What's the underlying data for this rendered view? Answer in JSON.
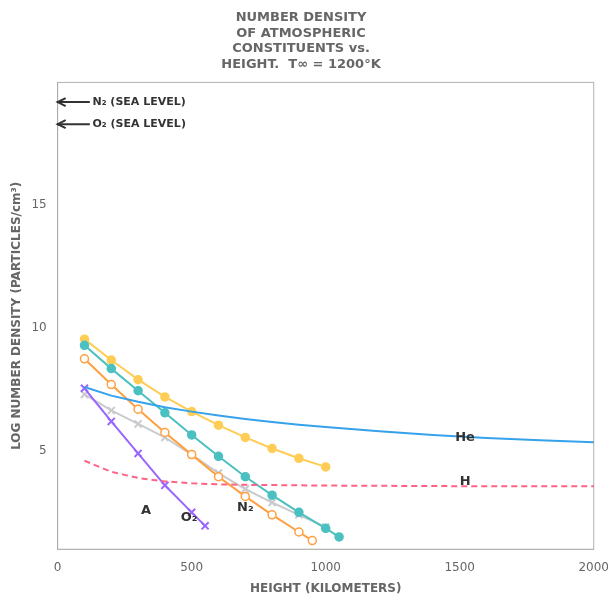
{
  "chart_data": {
    "type": "line",
    "title": [
      "NUMBER DENSITY",
      "OF ATMOSPHERIC",
      "CONSTITUENTS vs.",
      "HEIGHT.  T∞ = 1200°K"
    ],
    "xlabel": "HEIGHT (KILOMETERS)",
    "ylabel": "LOG NUMBER DENSITY (PARTICLES/cm³)",
    "xlim": [
      0,
      2000
    ],
    "ylim": [
      1,
      20
    ],
    "xticks": [
      0,
      500,
      1000,
      1500,
      2000
    ],
    "yticks": [
      5,
      10,
      15
    ],
    "grid": false,
    "legend": false,
    "series": [
      {
        "x": [
          100,
          200,
          300,
          400,
          500,
          600,
          700,
          800,
          900,
          1000,
          1200,
          1400,
          1600,
          1800,
          2000
        ],
        "values": [
          7.6,
          7.25,
          7.0,
          6.78,
          6.6,
          6.44,
          6.3,
          6.18,
          6.07,
          5.97,
          5.8,
          5.65,
          5.53,
          5.43,
          5.35
        ],
        "marker": "none",
        "line_style": "solid"
      },
      {
        "x": [
          100,
          200,
          300,
          400,
          500,
          600,
          700,
          800,
          900,
          1000,
          1200,
          1400,
          1600,
          1800,
          2000
        ],
        "values": [
          4.6,
          4.15,
          3.9,
          3.76,
          3.68,
          3.64,
          3.62,
          3.61,
          3.6,
          3.59,
          3.58,
          3.57,
          3.56,
          3.56,
          3.56
        ],
        "marker": "none",
        "line_style": "dashed"
      },
      {
        "x": [
          100,
          200,
          300,
          400,
          500,
          600,
          700,
          800,
          900,
          1000,
          1050
        ],
        "values": [
          9.3,
          8.35,
          7.45,
          6.55,
          5.65,
          4.78,
          3.95,
          3.2,
          2.5,
          1.85,
          1.5
        ],
        "marker": "circle",
        "line_style": "solid"
      },
      {
        "x": [
          100,
          200,
          300,
          400,
          500,
          600,
          700,
          800,
          900,
          950
        ],
        "values": [
          8.75,
          7.7,
          6.7,
          5.75,
          4.85,
          3.95,
          3.15,
          2.4,
          1.7,
          1.35
        ],
        "marker": "open_circle",
        "line_style": "solid"
      },
      {
        "x": [
          100,
          200,
          300,
          400,
          500,
          550
        ],
        "values": [
          7.55,
          6.2,
          4.9,
          3.6,
          2.5,
          1.95
        ],
        "marker": "x",
        "line_style": "solid"
      },
      {
        "x": [
          100,
          200,
          300,
          400,
          500,
          600,
          700,
          800,
          900,
          1000
        ],
        "values": [
          9.55,
          8.7,
          7.9,
          7.2,
          6.6,
          6.05,
          5.55,
          5.1,
          4.7,
          4.35
        ],
        "marker": "circle",
        "line_style": "solid"
      },
      {
        "x": [
          100,
          200,
          300,
          400,
          500,
          600,
          700,
          800,
          900,
          1000
        ],
        "values": [
          7.3,
          6.65,
          6.1,
          5.55,
          4.85,
          4.1,
          3.45,
          2.9,
          2.4,
          1.9
        ],
        "marker": "x",
        "line_style": "solid"
      }
    ],
    "annotations": [
      {
        "text": "N₂ (SEA LEVEL)",
        "x": 130,
        "y": 19.2,
        "arrow_x": [
          120,
          0
        ]
      },
      {
        "text": "O₂ (SEA LEVEL)",
        "x": 130,
        "y": 18.3,
        "arrow_x": [
          120,
          0
        ]
      },
      {
        "text": "He",
        "x": 1520,
        "y": 5.55
      },
      {
        "text": "H",
        "x": 1520,
        "y": 3.75
      },
      {
        "text": "A",
        "x": 330,
        "y": 2.55
      },
      {
        "text": "O₂",
        "x": 490,
        "y": 2.3
      },
      {
        "text": "N₂",
        "x": 700,
        "y": 2.7
      }
    ]
  }
}
